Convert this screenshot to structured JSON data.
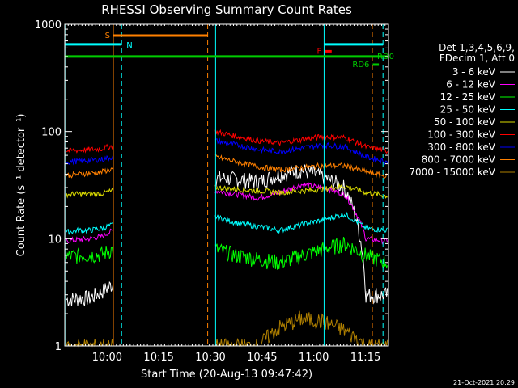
{
  "chart_data": {
    "type": "line",
    "title": "RHESSI Observing Summary Count Rates",
    "xlabel": "Start Time (20-Aug-13 09:47:42)",
    "ylabel": "Count Rate (s⁻¹ detector⁻¹)",
    "yscale": "log",
    "ylim": [
      1,
      1000
    ],
    "xlim_minutes": [
      0,
      94
    ],
    "x_tick_labels": [
      "10:00",
      "10:15",
      "10:30",
      "10:45",
      "11:00",
      "11:15"
    ],
    "x_tick_minutes": [
      12.3,
      27.3,
      42.3,
      57.3,
      72.3,
      87.3
    ],
    "y_tick_labels": [
      "1",
      "10",
      "100",
      "1000"
    ],
    "y_tick_values": [
      1,
      10,
      100,
      1000
    ],
    "legend_header": [
      "Det 1,3,4,5,6,9,",
      "FDecim 1, Att 0"
    ],
    "legend_placement": "right",
    "footer_date": "21-Oct-2021 20:29",
    "data_gap_minutes": [
      16.5,
      43.7
    ],
    "series": [
      {
        "name": "3 - 6 keV",
        "color": "#ffffff",
        "before": [
          2.7,
          2.8,
          2.8,
          3.2,
          3.8
        ],
        "after": [
          37,
          36,
          34,
          40,
          44,
          38,
          30,
          3,
          3
        ]
      },
      {
        "name": "6 - 12 keV",
        "color": "#ff00ff",
        "before": [
          9.6,
          9.8,
          10,
          10.5,
          12
        ],
        "after": [
          28,
          26,
          24,
          27,
          32,
          30,
          26,
          10,
          9.5
        ]
      },
      {
        "name": "12 - 25 keV",
        "color": "#00ff00",
        "before": [
          6.8,
          7,
          7,
          7.2,
          8
        ],
        "after": [
          8,
          7,
          6.5,
          6,
          7,
          8,
          9,
          7,
          6
        ]
      },
      {
        "name": "25 - 50 keV",
        "color": "#00ffff",
        "before": [
          11.5,
          12,
          12,
          12.5,
          13.5
        ],
        "after": [
          16,
          14,
          13,
          12,
          13.5,
          15,
          17,
          12.5,
          12
        ]
      },
      {
        "name": "50 - 100 keV",
        "color": "#dddd00",
        "before": [
          26,
          26,
          26,
          26.5,
          28
        ],
        "after": [
          30,
          29,
          28,
          27,
          28,
          29,
          31,
          27,
          25
        ]
      },
      {
        "name": "100 - 300 keV",
        "color": "#ff0000",
        "before": [
          66,
          67,
          68,
          69,
          74
        ],
        "after": [
          100,
          90,
          82,
          78,
          84,
          90,
          88,
          72,
          66
        ]
      },
      {
        "name": "300 - 800 keV",
        "color": "#0000ff",
        "before": [
          52,
          53,
          54,
          55,
          58
        ],
        "after": [
          82,
          75,
          68,
          65,
          70,
          75,
          72,
          58,
          52
        ]
      },
      {
        "name": "800 - 7000 keV",
        "color": "#ff8000",
        "before": [
          39,
          40,
          41,
          42,
          45
        ],
        "after": [
          58,
          52,
          47,
          44,
          46,
          48,
          48,
          42,
          38
        ]
      },
      {
        "name": "7000 - 15000 keV",
        "color": "#b08000",
        "before": [
          1,
          1,
          1,
          1,
          1
        ],
        "after": [
          1,
          1,
          1,
          1.5,
          1.8,
          1.7,
          1.4,
          1,
          1
        ]
      }
    ],
    "flag_bars": [
      {
        "label": "S",
        "color": "#ff8000",
        "minutes": [
          14.1,
          41.5
        ],
        "level": 785
      },
      {
        "label": "N",
        "color": "#00ffff",
        "minutes": [
          0,
          16.5
        ],
        "level": 650
      },
      {
        "label": "F",
        "color": "#ff0000",
        "minutes": [
          75.5,
          77.5
        ],
        "level": 560
      },
      {
        "label": "",
        "color": "#00ffff",
        "minutes": [
          75.3,
          92.4
        ],
        "level": 650
      },
      {
        "label": "RD0",
        "color": "#00cc00",
        "minutes": [
          0,
          94
        ],
        "level": 500
      },
      {
        "label": "RD6",
        "color": "#00cc00",
        "minutes": [
          89.4,
          91.2
        ],
        "level": 420
      }
    ],
    "vertical_markers": [
      {
        "color": "#00ffff",
        "style": "solid",
        "minute": 0.3
      },
      {
        "color": "#ff8000",
        "style": "solid",
        "minute": 14.1
      },
      {
        "color": "#00ffff",
        "style": "dashed",
        "minute": 16.5
      },
      {
        "color": "#ff8000",
        "style": "dashed",
        "minute": 41.5
      },
      {
        "color": "#00ffff",
        "style": "solid",
        "minute": 43.8
      },
      {
        "color": "#00ffff",
        "style": "solid",
        "minute": 75.3
      },
      {
        "color": "#ff8000",
        "style": "dashed",
        "minute": 89.3
      },
      {
        "color": "#00ffff",
        "style": "dashed",
        "minute": 92.4
      }
    ]
  }
}
